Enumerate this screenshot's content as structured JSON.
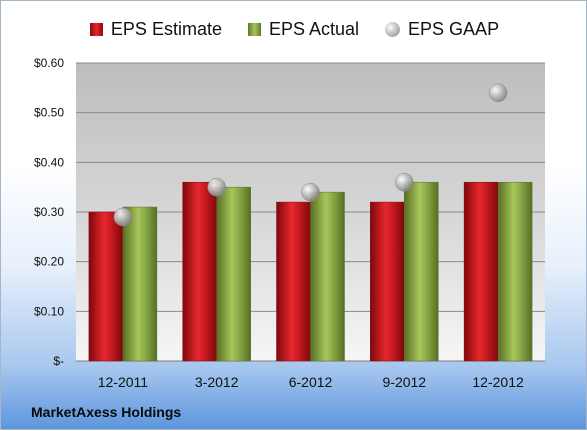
{
  "chart_data": {
    "type": "bar",
    "categories": [
      "12-2011",
      "3-2012",
      "6-2012",
      "9-2012",
      "12-2012"
    ],
    "series": [
      {
        "name": "EPS Estimate",
        "type": "bar",
        "color": "#d11d23",
        "values": [
          0.3,
          0.36,
          0.32,
          0.32,
          0.36
        ]
      },
      {
        "name": "EPS Actual",
        "type": "bar",
        "color": "#8fb04a",
        "values": [
          0.31,
          0.35,
          0.34,
          0.36,
          0.36
        ]
      },
      {
        "name": "EPS GAAP",
        "type": "scatter",
        "color": "#b3b3b3",
        "values": [
          0.29,
          0.35,
          0.34,
          0.36,
          0.54
        ]
      }
    ],
    "yticks": [
      "$-",
      "$0.10",
      "$0.20",
      "$0.30",
      "$0.40",
      "$0.50",
      "$0.60"
    ],
    "ylim": [
      0,
      0.6
    ],
    "grid": true,
    "legend_position": "top"
  },
  "legend": {
    "estimate": "EPS Estimate",
    "actual": "EPS Actual",
    "gaap": "EPS GAAP"
  },
  "footer": {
    "company": "MarketAxess Holdings"
  }
}
